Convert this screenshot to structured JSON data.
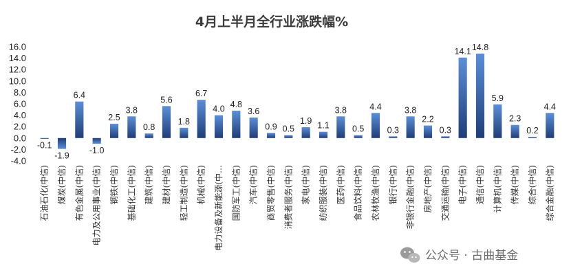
{
  "chart_data": {
    "type": "bar",
    "title": "4月上半月全行业涨跌幅%",
    "xlabel": "",
    "ylabel": "",
    "ylim": [
      -4.0,
      16.0
    ],
    "yticks": [
      "16.0",
      "14.0",
      "12.0",
      "10.0",
      "8.0",
      "6.0",
      "4.0",
      "2.0",
      "0.0",
      "-2.0",
      "-4.0"
    ],
    "grid": false,
    "legend": "none",
    "categories": [
      "石油石化(中信)",
      "煤炭(中信)",
      "有色金属(中信)",
      "电力及公用事业(中信)",
      "钢铁(中信)",
      "基础化工(中信)",
      "建筑(中信)",
      "建材(中信)",
      "轻工制造(中信)",
      "机械(中信)",
      "电力设备及新能源(中…",
      "国防军工(中信)",
      "汽车(中信)",
      "商贸零售(中信)",
      "消费者服务(中信)",
      "家电(中信)",
      "纺织服装(中信)",
      "医药(中信)",
      "食品饮料(中信)",
      "农林牧渔(中信)",
      "银行(中信)",
      "非银行金融(中信)",
      "房地产(中信)",
      "交通运输(中信)",
      "电子(中信)",
      "通信(中信)",
      "计算机(中信)",
      "传媒(中信)",
      "综合(中信)",
      "综合金融(中信)"
    ],
    "values": [
      -0.1,
      -1.9,
      6.4,
      -1.0,
      2.5,
      3.8,
      0.8,
      5.6,
      1.8,
      6.7,
      4.0,
      4.8,
      3.6,
      0.9,
      0.5,
      1.9,
      1.1,
      3.8,
      0.5,
      4.4,
      0.3,
      3.8,
      2.2,
      0.3,
      14.1,
      14.8,
      5.9,
      2.3,
      0.2,
      4.4
    ],
    "value_labels": [
      "-0.1",
      "-1.9",
      "6.4",
      "-1.0",
      "2.5",
      "3.8",
      "0.8",
      "5.6",
      "1.8",
      "6.7",
      "4.0",
      "4.8",
      "3.6",
      "0.9",
      "0.5",
      "1.9",
      "1.1",
      "3.8",
      "0.5",
      "4.4",
      "0.3",
      "3.8",
      "2.2",
      "0.3",
      "14.1",
      "14.8",
      "5.9",
      "2.3",
      "0.2",
      "4.4"
    ],
    "colors": {
      "bar_top": "#5b8fd8",
      "bar_bottom": "#1f3d78",
      "text": "#222222"
    }
  },
  "watermark": {
    "text": "公众号 · 古曲基金",
    "icon": "wechat-icon"
  }
}
